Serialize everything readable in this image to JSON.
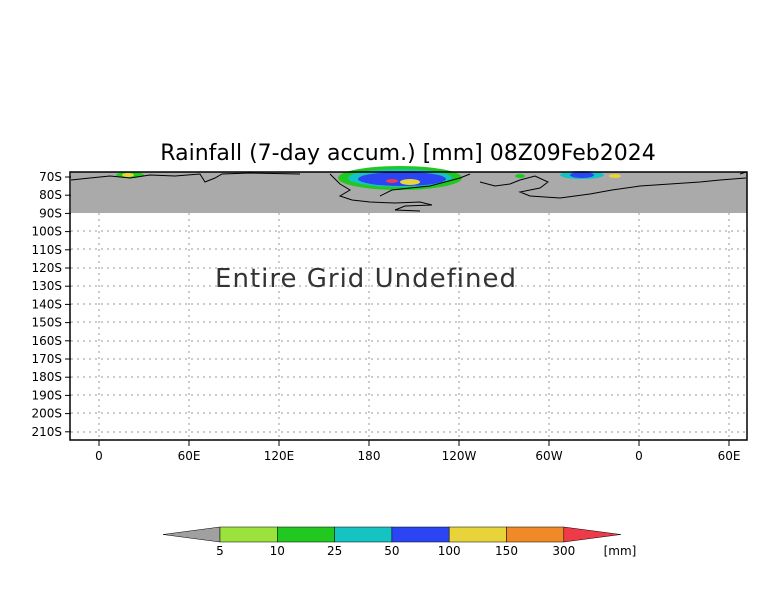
{
  "title": "Rainfall (7-day accum.) [mm] 08Z09Feb2024",
  "message": "Entire Grid Undefined",
  "lat_labels": [
    "70S",
    "80S",
    "90S",
    "100S",
    "110S",
    "120S",
    "130S",
    "140S",
    "150S",
    "160S",
    "170S",
    "180S",
    "190S",
    "200S",
    "210S"
  ],
  "lon_labels": [
    "0",
    "60E",
    "120E",
    "180",
    "120W",
    "60W",
    "0",
    "60E"
  ],
  "colorbar": {
    "unit": "[mm]",
    "labels": [
      "5",
      "10",
      "25",
      "50",
      "100",
      "150",
      "300"
    ],
    "colors": [
      "#a0a0a0",
      "#9be33c",
      "#21c81f",
      "#15c3c3",
      "#2b45f5",
      "#e8d43a",
      "#f08a28",
      "#ef3a4a"
    ]
  },
  "colors": {
    "undefined_region": "#aaaaaa",
    "grid": "#999999"
  }
}
